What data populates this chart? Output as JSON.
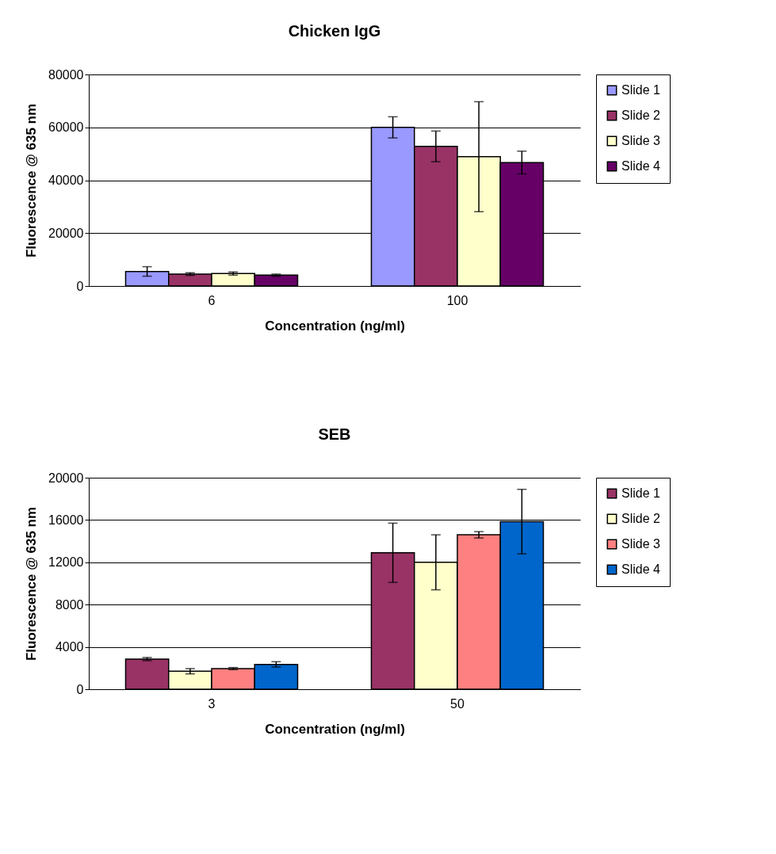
{
  "chart_data": [
    {
      "type": "bar",
      "title": "Chicken IgG",
      "xlabel": "Concentration (ng/ml)",
      "ylabel": "Fluorescence @ 635 nm",
      "categories": [
        "6",
        "100"
      ],
      "series": [
        {
          "name": "Slide 1",
          "color": "#9999ff",
          "values": [
            5500,
            60000
          ],
          "errors": [
            1800,
            4000
          ]
        },
        {
          "name": "Slide 2",
          "color": "#993366",
          "values": [
            4500,
            52800
          ],
          "errors": [
            500,
            5800
          ]
        },
        {
          "name": "Slide 3",
          "color": "#ffffcc",
          "values": [
            4700,
            48900
          ],
          "errors": [
            600,
            20800
          ]
        },
        {
          "name": "Slide 4",
          "color": "#660066",
          "values": [
            4100,
            46700
          ],
          "errors": [
            400,
            4300
          ]
        }
      ],
      "ylim": [
        0,
        80000
      ],
      "yticks": [
        0,
        20000,
        40000,
        60000,
        80000
      ],
      "grid": "y",
      "legend": "right"
    },
    {
      "type": "bar",
      "title": "SEB",
      "xlabel": "Concentration (ng/ml)",
      "ylabel": "Fluorescence @ 635 nm",
      "categories": [
        "3",
        "50"
      ],
      "series": [
        {
          "name": "Slide 1",
          "color": "#993366",
          "values": [
            2850,
            12900
          ],
          "errors": [
            150,
            2800
          ]
        },
        {
          "name": "Slide 2",
          "color": "#ffffcc",
          "values": [
            1700,
            12000
          ],
          "errors": [
            250,
            2600
          ]
        },
        {
          "name": "Slide 3",
          "color": "#ff8080",
          "values": [
            1950,
            14600
          ],
          "errors": [
            100,
            300
          ]
        },
        {
          "name": "Slide 4",
          "color": "#0066cc",
          "values": [
            2350,
            15850
          ],
          "errors": [
            250,
            3050
          ]
        }
      ],
      "ylim": [
        0,
        20000
      ],
      "yticks": [
        0,
        4000,
        8000,
        12000,
        16000,
        20000
      ],
      "grid": "y",
      "legend": "right"
    }
  ]
}
